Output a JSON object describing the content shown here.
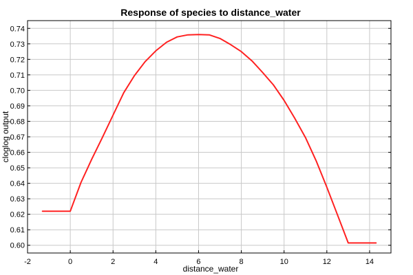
{
  "chart_data": {
    "type": "line",
    "title": "Response of species to distance_water",
    "xlabel": "distance_water",
    "ylabel": "cloglog output",
    "xlim": [
      -2,
      15
    ],
    "ylim": [
      0.595,
      0.745
    ],
    "xticks": [
      "-2",
      "0",
      "2",
      "4",
      "6",
      "8",
      "10",
      "12",
      "14"
    ],
    "yticks": [
      "0.60",
      "0.61",
      "0.62",
      "0.63",
      "0.64",
      "0.65",
      "0.66",
      "0.67",
      "0.68",
      "0.69",
      "0.70",
      "0.71",
      "0.72",
      "0.73",
      "0.74"
    ],
    "grid": true,
    "series": [
      {
        "color": "#ff2020",
        "x": [
          -1.3,
          -0.5,
          0.0,
          0.5,
          1.0,
          1.5,
          2.0,
          2.5,
          3.0,
          3.5,
          4.0,
          4.5,
          5.0,
          5.5,
          6.0,
          6.5,
          7.0,
          7.5,
          8.0,
          8.5,
          9.0,
          9.5,
          10.0,
          10.5,
          11.0,
          11.5,
          12.0,
          12.5,
          13.0,
          13.5,
          14.3
        ],
        "y": [
          0.622,
          0.622,
          0.622,
          0.6405,
          0.6555,
          0.6695,
          0.684,
          0.6985,
          0.7095,
          0.7185,
          0.7255,
          0.731,
          0.7345,
          0.7358,
          0.736,
          0.7358,
          0.7335,
          0.7295,
          0.725,
          0.719,
          0.7115,
          0.7035,
          0.6935,
          0.682,
          0.6695,
          0.6545,
          0.6375,
          0.6195,
          0.6015,
          0.6015,
          0.6015
        ]
      }
    ]
  }
}
